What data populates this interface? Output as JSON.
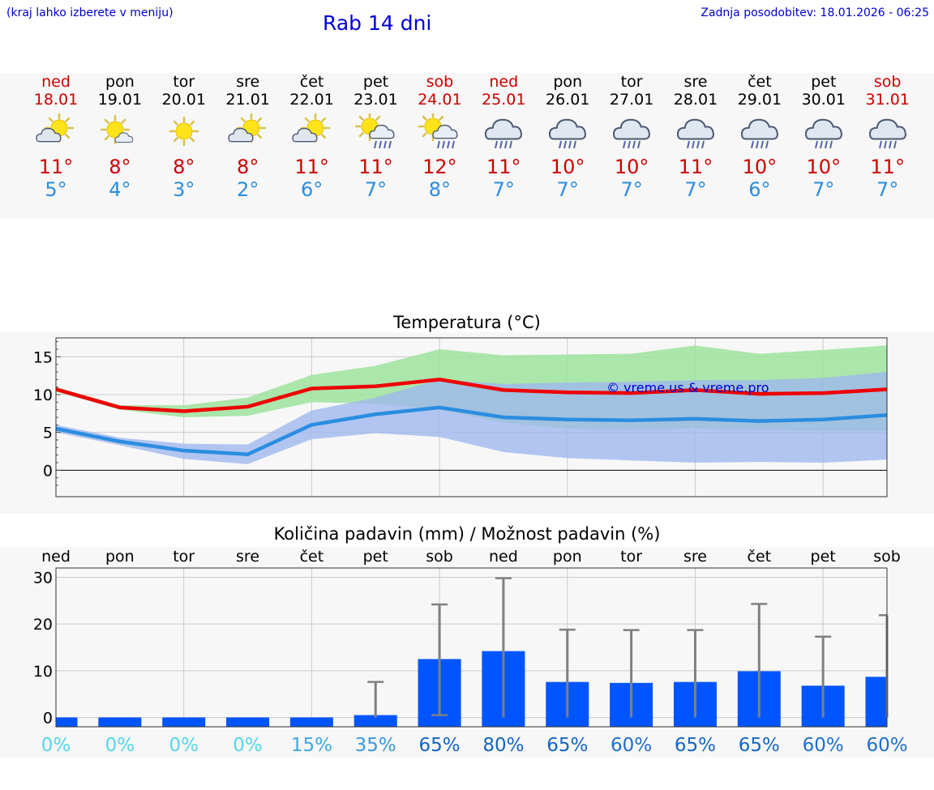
{
  "header": {
    "menu_hint": "(kraj lahko izberete v meniju)",
    "title": "Rab 14 dni",
    "updated": "Zadnja posodobitev: 18.01.2026 - 06:25"
  },
  "days": [
    {
      "name": "ned",
      "date": "18.01",
      "weekend": true,
      "icon": "partly-cloudy-sun-icon",
      "tmax": "11°",
      "tmin": "5°"
    },
    {
      "name": "pon",
      "date": "19.01",
      "weekend": false,
      "icon": "sun-small-cloud-icon",
      "tmax": "8°",
      "tmin": "4°"
    },
    {
      "name": "tor",
      "date": "20.01",
      "weekend": false,
      "icon": "sun-icon",
      "tmax": "8°",
      "tmin": "3°"
    },
    {
      "name": "sre",
      "date": "21.01",
      "weekend": false,
      "icon": "partly-cloudy-sun-icon",
      "tmax": "8°",
      "tmin": "2°"
    },
    {
      "name": "čet",
      "date": "22.01",
      "weekend": false,
      "icon": "partly-cloudy-sun-icon",
      "tmax": "11°",
      "tmin": "6°"
    },
    {
      "name": "pet",
      "date": "23.01",
      "weekend": false,
      "icon": "sun-rain-cloud-icon",
      "tmax": "11°",
      "tmin": "7°"
    },
    {
      "name": "sob",
      "date": "24.01",
      "weekend": true,
      "icon": "sun-rain-cloud-icon",
      "tmax": "12°",
      "tmin": "8°"
    },
    {
      "name": "ned",
      "date": "25.01",
      "weekend": true,
      "icon": "rain-cloud-icon",
      "tmax": "11°",
      "tmin": "7°"
    },
    {
      "name": "pon",
      "date": "26.01",
      "weekend": false,
      "icon": "rain-cloud-icon",
      "tmax": "10°",
      "tmin": "7°"
    },
    {
      "name": "tor",
      "date": "27.01",
      "weekend": false,
      "icon": "rain-cloud-icon",
      "tmax": "10°",
      "tmin": "7°"
    },
    {
      "name": "sre",
      "date": "28.01",
      "weekend": false,
      "icon": "rain-cloud-icon",
      "tmax": "11°",
      "tmin": "7°"
    },
    {
      "name": "čet",
      "date": "29.01",
      "weekend": false,
      "icon": "rain-cloud-icon",
      "tmax": "10°",
      "tmin": "6°"
    },
    {
      "name": "pet",
      "date": "30.01",
      "weekend": false,
      "icon": "rain-cloud-icon",
      "tmax": "10°",
      "tmin": "7°"
    },
    {
      "name": "sob",
      "date": "31.01",
      "weekend": true,
      "icon": "rain-cloud-icon",
      "tmax": "11°",
      "tmin": "7°"
    }
  ],
  "colors": {
    "max_line": "#ee0000",
    "min_line": "#2a8de0",
    "max_band": "#9de39d",
    "min_band": "#9fb8ee",
    "overlap_band": "#7fc8a8",
    "bar": "#0055ff",
    "errorbar": "#808080",
    "watermark": "#0000cc"
  },
  "chart_data": [
    {
      "type": "line",
      "title": "Temperatura (°C)",
      "watermark": "© vreme.us & vreme.pro",
      "x": [
        0,
        1,
        2,
        3,
        4,
        5,
        6,
        7,
        8,
        9,
        10,
        11,
        12,
        13
      ],
      "ylim": [
        -3.5,
        17.5
      ],
      "yticks": [
        0,
        5,
        10,
        15
      ],
      "grid": true,
      "series": [
        {
          "name": "max",
          "values": [
            10.7,
            8.3,
            7.8,
            8.4,
            10.8,
            11.1,
            12.0,
            10.6,
            10.3,
            10.2,
            10.6,
            10.1,
            10.2,
            10.7
          ],
          "band_low": [
            10.4,
            8.0,
            7.0,
            7.2,
            9.0,
            8.8,
            8.0,
            6.3,
            5.5,
            5.3,
            5.5,
            5.3,
            5.2,
            5.2
          ],
          "band_high": [
            11.0,
            8.6,
            8.6,
            9.6,
            12.6,
            13.8,
            16.0,
            15.2,
            15.3,
            15.4,
            16.5,
            15.4,
            15.9,
            16.5
          ]
        },
        {
          "name": "min",
          "values": [
            5.5,
            3.8,
            2.6,
            2.1,
            6.0,
            7.4,
            8.3,
            7.0,
            6.7,
            6.6,
            6.8,
            6.5,
            6.7,
            7.3
          ],
          "band_low": [
            5.0,
            3.3,
            1.5,
            0.8,
            4.1,
            4.9,
            4.4,
            2.4,
            1.6,
            1.3,
            1.0,
            1.1,
            1.0,
            1.4
          ],
          "band_high": [
            6.0,
            4.3,
            3.5,
            3.4,
            7.9,
            9.6,
            12.0,
            11.4,
            11.6,
            11.7,
            11.9,
            11.9,
            12.2,
            13.0
          ]
        }
      ]
    },
    {
      "type": "bar",
      "title": "Količina padavin (mm) / Možnost padavin (%)",
      "categories": [
        "ned",
        "pon",
        "tor",
        "sre",
        "čet",
        "pet",
        "sob",
        "ned",
        "pon",
        "tor",
        "sre",
        "čet",
        "pet",
        "sob"
      ],
      "values": [
        0,
        0,
        0,
        0,
        0,
        0.5,
        12.5,
        14.2,
        7.6,
        7.4,
        7.6,
        9.9,
        6.8,
        8.7
      ],
      "error_low": [
        0,
        0,
        0,
        0,
        0,
        0,
        0.5,
        0,
        0,
        0,
        0,
        0,
        0,
        0
      ],
      "error_high": [
        0,
        0,
        0,
        0,
        0,
        7.6,
        24.2,
        29.8,
        18.8,
        18.7,
        18.7,
        24.3,
        17.3,
        21.9
      ],
      "probability": [
        "0%",
        "0%",
        "0%",
        "0%",
        "15%",
        "35%",
        "65%",
        "80%",
        "65%",
        "60%",
        "65%",
        "65%",
        "60%",
        "60%"
      ],
      "probability_values": [
        0,
        0,
        0,
        0,
        15,
        35,
        65,
        80,
        65,
        60,
        65,
        65,
        60,
        60
      ],
      "ylim": [
        -2,
        32
      ],
      "yticks": [
        0,
        10,
        20,
        30
      ],
      "grid": true
    }
  ]
}
